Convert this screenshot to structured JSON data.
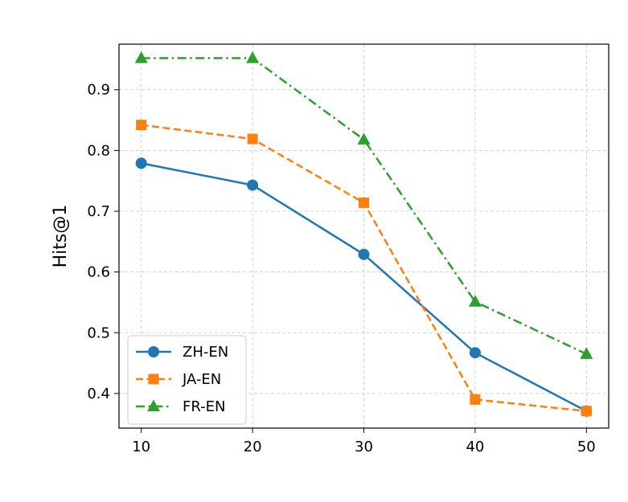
{
  "chart_data": {
    "type": "line",
    "title": "",
    "xlabel": "",
    "ylabel": "Hits@1",
    "x": [
      10,
      20,
      30,
      40,
      50
    ],
    "xticks": [
      "10",
      "20",
      "30",
      "40",
      "50"
    ],
    "yticks": [
      "0.4",
      "0.5",
      "0.6",
      "0.7",
      "0.8",
      "0.9"
    ],
    "xlim": [
      8,
      52
    ],
    "ylim": [
      0.343,
      0.975
    ],
    "grid": true,
    "legend_position": "lower-left",
    "series": [
      {
        "name": "ZH-EN",
        "values": [
          0.779,
          0.743,
          0.629,
          0.467,
          0.371
        ],
        "color": "#1f77b4",
        "linestyle": "solid",
        "marker": "circle"
      },
      {
        "name": "JA-EN",
        "values": [
          0.842,
          0.819,
          0.714,
          0.39,
          0.371
        ],
        "color": "#ff7f0e",
        "linestyle": "dashed",
        "marker": "square"
      },
      {
        "name": "FR-EN",
        "values": [
          0.952,
          0.952,
          0.818,
          0.551,
          0.465
        ],
        "color": "#2ca02c",
        "linestyle": "dashdot",
        "marker": "triangle"
      }
    ]
  }
}
